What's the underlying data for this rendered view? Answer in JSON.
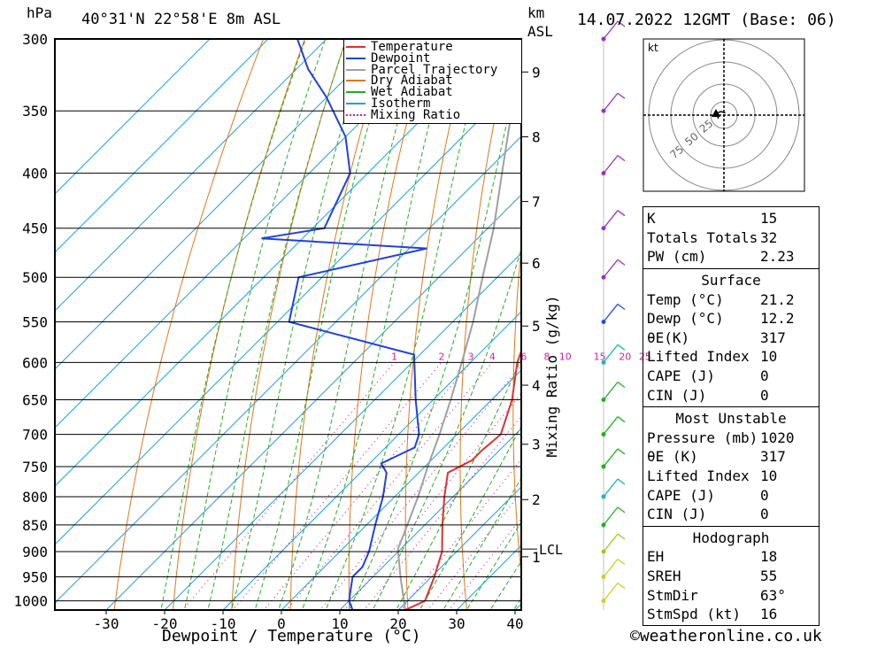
{
  "header": {
    "left_unit": "hPa",
    "location": "40°31'N  22°58'E  8m  ASL",
    "km_label_1": "km",
    "km_label_2": "ASL",
    "date": "14.07.2022  12GMT  (Base: 06)"
  },
  "legend": [
    "Temperature",
    "Dewpoint",
    "Parcel Trajectory",
    "Dry Adiabat",
    "Wet Adiabat",
    "Isotherm",
    "Mixing Ratio"
  ],
  "colors": {
    "temperature": "#e03030",
    "dewpoint": "#2040e0",
    "parcel": "#a0a0a0",
    "dry_adiabat": "#e07818",
    "wet_adiabat": "#20b020",
    "isotherm": "#20a0e0",
    "mixing_ratio": "#d020a0"
  },
  "footer": {
    "xlabel": "Dewpoint / Temperature (°C)",
    "ylabel_right": "Mixing Ratio (g/kg)",
    "copyright": "©weatheronline.co.uk"
  },
  "hodograph": {
    "unit": "kt",
    "rings": [
      "25",
      "50",
      "75"
    ]
  },
  "indices": {
    "general": [
      {
        "label": "K",
        "value": "15"
      },
      {
        "label": "Totals Totals",
        "value": "32"
      },
      {
        "label": "PW (cm)",
        "value": "2.23"
      }
    ],
    "surface_title": "Surface",
    "surface": [
      {
        "label": "Temp (°C)",
        "value": "21.2"
      },
      {
        "label": "Dewp (°C)",
        "value": "12.2"
      },
      {
        "label": "θE(K)",
        "value": "317"
      },
      {
        "label": "Lifted Index",
        "value": "10"
      },
      {
        "label": "CAPE (J)",
        "value": "0"
      },
      {
        "label": "CIN (J)",
        "value": "0"
      }
    ],
    "mu_title": "Most Unstable",
    "most_unstable": [
      {
        "label": "Pressure (mb)",
        "value": "1020"
      },
      {
        "label": "θE (K)",
        "value": "317"
      },
      {
        "label": "Lifted Index",
        "value": "10"
      },
      {
        "label": "CAPE (J)",
        "value": "0"
      },
      {
        "label": "CIN (J)",
        "value": "0"
      }
    ],
    "hodo_title": "Hodograph",
    "hodo": [
      {
        "label": "EH",
        "value": "18"
      },
      {
        "label": "SREH",
        "value": "55"
      },
      {
        "label": "StmDir",
        "value": "63°"
      },
      {
        "label": "StmSpd (kt)",
        "value": "16"
      }
    ]
  },
  "chart_data": {
    "type": "skew-t",
    "pressure_levels": [
      300,
      350,
      400,
      450,
      500,
      550,
      600,
      650,
      700,
      750,
      800,
      850,
      900,
      950,
      1000
    ],
    "x_ticks": [
      -30,
      -20,
      -10,
      0,
      10,
      20,
      30,
      40
    ],
    "xlim": [
      -40,
      40
    ],
    "ylim": [
      1020,
      300
    ],
    "km_ticks": [
      {
        "km": "1",
        "p": 910
      },
      {
        "km": "2",
        "p": 805
      },
      {
        "km": "3",
        "p": 715
      },
      {
        "km": "4",
        "p": 630
      },
      {
        "km": "5",
        "p": 555
      },
      {
        "km": "6",
        "p": 485
      },
      {
        "km": "7",
        "p": 425
      },
      {
        "km": "8",
        "p": 370
      },
      {
        "km": "9",
        "p": 322
      }
    ],
    "lcl_label": "LCL",
    "lcl_p": 895,
    "mixing_ratio_labels": [
      "1",
      "2",
      "3",
      "4",
      "6",
      "8",
      "10",
      "15",
      "20",
      "25"
    ],
    "mixing_ratio_values": [
      1,
      2,
      3,
      4,
      6,
      8,
      10,
      15,
      20,
      25
    ],
    "temperature": [
      {
        "p": 1020,
        "t": 21.2
      },
      {
        "p": 1000,
        "t": 23.0
      },
      {
        "p": 950,
        "t": 20.5
      },
      {
        "p": 900,
        "t": 17.5
      },
      {
        "p": 850,
        "t": 13.0
      },
      {
        "p": 800,
        "t": 8.5
      },
      {
        "p": 760,
        "t": 5.0
      },
      {
        "p": 740,
        "t": 7.0
      },
      {
        "p": 725,
        "t": 7.0
      },
      {
        "p": 700,
        "t": 7.5
      },
      {
        "p": 650,
        "t": 3.5
      },
      {
        "p": 600,
        "t": -2.0
      },
      {
        "p": 550,
        "t": -6.5
      },
      {
        "p": 500,
        "t": -12.5
      },
      {
        "p": 470,
        "t": -16.0
      },
      {
        "p": 450,
        "t": -17.0
      },
      {
        "p": 400,
        "t": -25.0
      },
      {
        "p": 350,
        "t": -33.5
      },
      {
        "p": 300,
        "t": -42.0
      }
    ],
    "dewpoint": [
      {
        "p": 1020,
        "t": 12.2
      },
      {
        "p": 1000,
        "t": 10.0
      },
      {
        "p": 950,
        "t": 6.5
      },
      {
        "p": 930,
        "t": 6.5
      },
      {
        "p": 900,
        "t": 5.0
      },
      {
        "p": 850,
        "t": 1.5
      },
      {
        "p": 800,
        "t": -2.0
      },
      {
        "p": 760,
        "t": -5.5
      },
      {
        "p": 745,
        "t": -8.0
      },
      {
        "p": 720,
        "t": -5.0
      },
      {
        "p": 700,
        "t": -6.5
      },
      {
        "p": 650,
        "t": -13.0
      },
      {
        "p": 590,
        "t": -21.0
      },
      {
        "p": 550,
        "t": -48.0
      },
      {
        "p": 500,
        "t": -54.0
      },
      {
        "p": 470,
        "t": -37.0
      },
      {
        "p": 460,
        "t": -67.0
      },
      {
        "p": 450,
        "t": -58.0
      },
      {
        "p": 400,
        "t": -63.0
      },
      {
        "p": 370,
        "t": -70.0
      },
      {
        "p": 340,
        "t": -80.0
      },
      {
        "p": 320,
        "t": -88.0
      },
      {
        "p": 300,
        "t": -95.0
      }
    ],
    "parcel": [
      {
        "p": 1020,
        "t": 21.2
      },
      {
        "p": 950,
        "t": 14.7
      },
      {
        "p": 895,
        "t": 9.5
      },
      {
        "p": 850,
        "t": 7.0
      },
      {
        "p": 800,
        "t": 4.0
      },
      {
        "p": 750,
        "t": 0.5
      },
      {
        "p": 700,
        "t": -3.0
      },
      {
        "p": 650,
        "t": -7.0
      },
      {
        "p": 600,
        "t": -11.5
      },
      {
        "p": 550,
        "t": -16.5
      },
      {
        "p": 500,
        "t": -22.5
      },
      {
        "p": 450,
        "t": -29.0
      },
      {
        "p": 400,
        "t": -37.0
      },
      {
        "p": 350,
        "t": -46.0
      },
      {
        "p": 300,
        "t": -56.5
      }
    ],
    "hodograph_points": [
      {
        "u": -8,
        "v": -5
      },
      {
        "u": -10,
        "v": 3
      },
      {
        "u": -4,
        "v": 5
      },
      {
        "u": 2,
        "v": 3
      }
    ]
  }
}
